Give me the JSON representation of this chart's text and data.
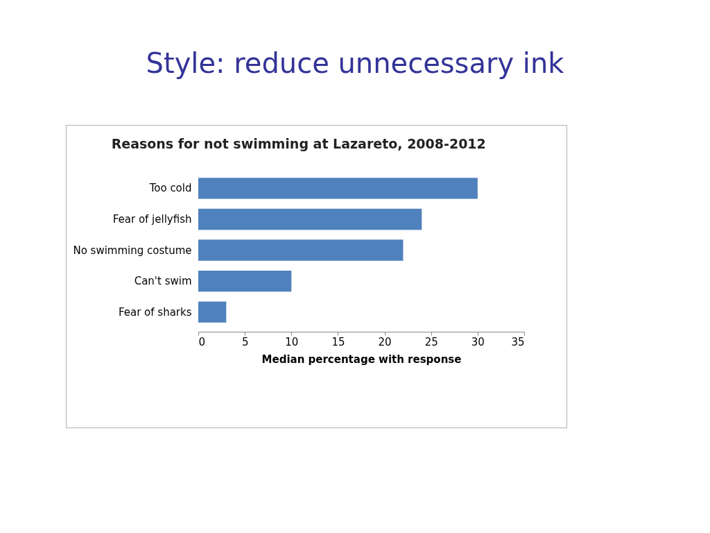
{
  "chart_data": {
    "type": "bar",
    "orientation": "horizontal",
    "title": "Style: reduce unnecessary ink",
    "subtitle": "Reasons for not swimming at Lazareto, 2008-2012",
    "xlabel": "Median percentage with response",
    "categories": [
      "Too cold",
      "Fear of jellyfish",
      "No swimming costume",
      "Can't swim",
      "Fear of sharks"
    ],
    "values": [
      30,
      24,
      22,
      10,
      3
    ],
    "color": "#4f81bd",
    "xlim": [
      0,
      35
    ],
    "xticks": [
      0,
      5,
      10,
      15,
      20,
      25,
      30,
      35
    ],
    "grid": false
  }
}
